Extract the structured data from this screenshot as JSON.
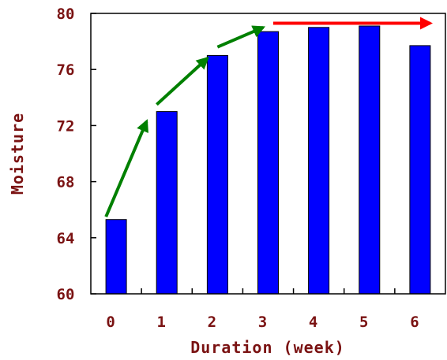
{
  "chart_data": {
    "type": "bar",
    "title": "",
    "xlabel": "Duration (week)",
    "ylabel": "Moisture",
    "categories": [
      "0",
      "1",
      "2",
      "3",
      "4",
      "5",
      "6"
    ],
    "values": [
      65.3,
      73.0,
      77.0,
      78.7,
      79.0,
      79.1,
      77.7
    ],
    "ylim": [
      60,
      80
    ],
    "yticks": [
      "60",
      "64",
      "68",
      "72",
      "76",
      "80"
    ],
    "grid": false,
    "legend": "none",
    "colors": {
      "bar": "#0000ff",
      "bar_edge": "#000000",
      "text": "#7a1212",
      "rising_arrow": "#008000",
      "plateau_arrow": "#ff0000"
    },
    "annotations": [
      {
        "type": "arrow",
        "color": "green",
        "from": {
          "x": -0.2,
          "y": 65.5
        },
        "to": {
          "x": 0.6,
          "y": 72.3
        }
      },
      {
        "type": "arrow",
        "color": "green",
        "from": {
          "x": 0.8,
          "y": 73.5
        },
        "to": {
          "x": 1.8,
          "y": 76.8
        }
      },
      {
        "type": "arrow",
        "color": "green",
        "from": {
          "x": 2.0,
          "y": 77.6
        },
        "to": {
          "x": 2.9,
          "y": 79.0
        }
      },
      {
        "type": "arrow",
        "color": "red",
        "from": {
          "x": 3.1,
          "y": 79.3
        },
        "to": {
          "x": 6.2,
          "y": 79.3
        }
      }
    ]
  }
}
